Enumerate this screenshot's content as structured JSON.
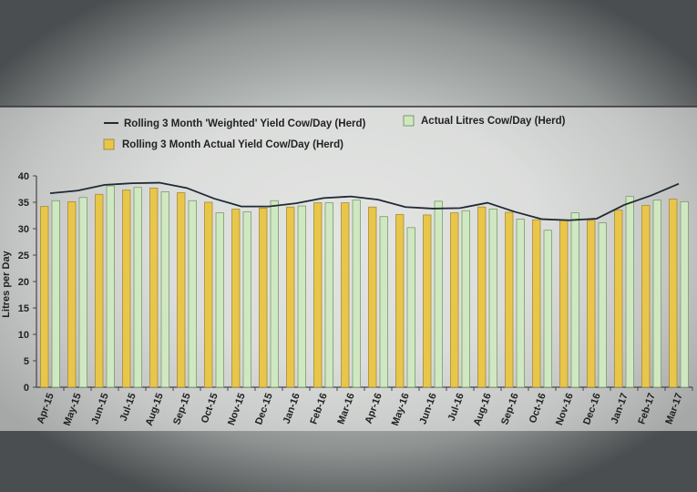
{
  "chart_data": {
    "type": "bar",
    "title": "",
    "xlabel": "",
    "ylabel": "Litres per Day",
    "ylim": [
      0,
      40
    ],
    "yticks": [
      0,
      5,
      10,
      15,
      20,
      25,
      30,
      35,
      40
    ],
    "grid": false,
    "legend_position": "top",
    "categories": [
      "Apr-15",
      "May-15",
      "Jun-15",
      "Jul-15",
      "Aug-15",
      "Sep-15",
      "Oct-15",
      "Nov-15",
      "Dec-15",
      "Jan-16",
      "Feb-16",
      "Mar-16",
      "Apr-16",
      "May-16",
      "Jun-16",
      "Jul-16",
      "Aug-16",
      "Sep-16",
      "Oct-16",
      "Nov-16",
      "Dec-16",
      "Jan-17",
      "Feb-17",
      "Mar-17"
    ],
    "series": [
      {
        "name": "Rolling 3 Month Actual Yield Cow/Day (Herd)",
        "kind": "bar",
        "color": "#e8c64a",
        "values": [
          34.2,
          35.1,
          36.5,
          37.3,
          37.7,
          36.8,
          35.0,
          33.7,
          33.9,
          34.1,
          34.9,
          34.9,
          34.1,
          32.7,
          32.6,
          33.0,
          34.1,
          33.1,
          31.7,
          31.6,
          31.6,
          33.5,
          34.4,
          35.6
        ]
      },
      {
        "name": "Actual Litres Cow/Day (Herd)",
        "kind": "bar",
        "color": "#cfe8c2",
        "values": [
          35.3,
          35.9,
          38.1,
          37.8,
          37.0,
          35.3,
          33.0,
          33.2,
          35.3,
          34.3,
          34.9,
          35.4,
          32.3,
          30.2,
          35.2,
          33.4,
          33.7,
          31.8,
          29.7,
          33.0,
          31.1,
          36.1,
          35.4,
          35.1
        ]
      },
      {
        "name": "Rolling 3 Month 'Weighted' Yield Cow/Day (Herd)",
        "kind": "line",
        "color": "#1f2a33",
        "values": [
          36.7,
          37.2,
          38.3,
          38.6,
          38.7,
          37.7,
          35.7,
          34.2,
          34.2,
          34.8,
          35.8,
          36.1,
          35.5,
          34.1,
          33.8,
          33.9,
          34.9,
          33.2,
          31.8,
          31.6,
          31.9,
          34.5,
          36.3,
          38.5
        ]
      }
    ]
  }
}
